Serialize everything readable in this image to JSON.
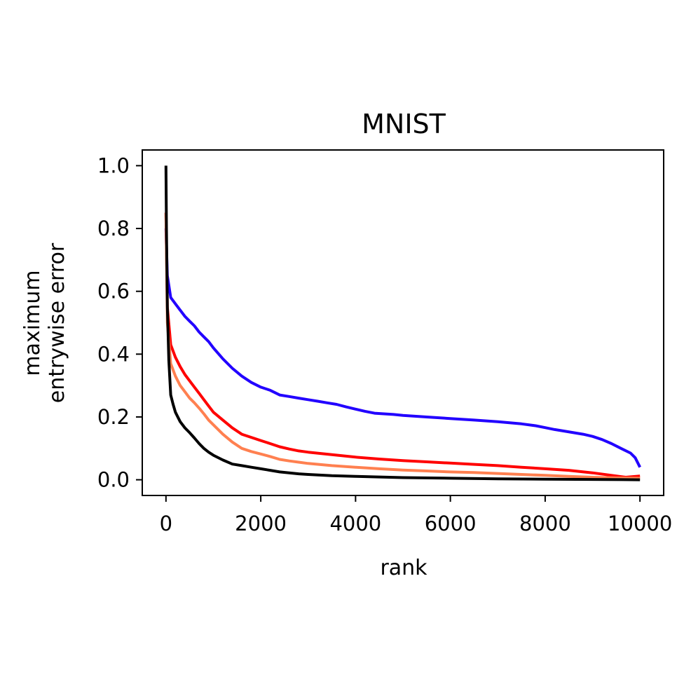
{
  "chart_data": {
    "type": "line",
    "title": "MNIST",
    "xlabel": "rank",
    "ylabel": [
      "maximum",
      "entrywise error"
    ],
    "xlim": [
      -500,
      10500
    ],
    "ylim": [
      -0.05,
      1.05
    ],
    "xticks": [
      0,
      2000,
      4000,
      6000,
      8000,
      10000
    ],
    "yticks": [
      0.0,
      0.2,
      0.4,
      0.6,
      0.8,
      1.0
    ],
    "yticklabels": [
      "0.0",
      "0.2",
      "0.4",
      "0.6",
      "0.8",
      "1.0"
    ],
    "grid": false,
    "legend": "none",
    "series": [
      {
        "name": "blue",
        "color": "#2200ff",
        "x": [
          0,
          30,
          100,
          200,
          300,
          400,
          500,
          600,
          700,
          800,
          900,
          1000,
          1200,
          1400,
          1600,
          1800,
          2000,
          2200,
          2400,
          2600,
          2800,
          3000,
          3200,
          3400,
          3600,
          3800,
          4000,
          4200,
          4400,
          4600,
          4800,
          5000,
          5500,
          6000,
          6500,
          7000,
          7500,
          7800,
          8000,
          8200,
          8400,
          8600,
          8800,
          9000,
          9200,
          9400,
          9600,
          9800,
          9900,
          10000
        ],
        "y": [
          0.8,
          0.65,
          0.58,
          0.56,
          0.54,
          0.52,
          0.505,
          0.49,
          0.47,
          0.455,
          0.44,
          0.42,
          0.385,
          0.355,
          0.33,
          0.31,
          0.295,
          0.285,
          0.27,
          0.265,
          0.26,
          0.255,
          0.25,
          0.245,
          0.24,
          0.232,
          0.225,
          0.218,
          0.212,
          0.21,
          0.208,
          0.205,
          0.2,
          0.195,
          0.19,
          0.185,
          0.178,
          0.172,
          0.166,
          0.16,
          0.155,
          0.15,
          0.145,
          0.138,
          0.128,
          0.115,
          0.1,
          0.085,
          0.07,
          0.04
        ]
      },
      {
        "name": "red",
        "color": "#ff0000",
        "x": [
          0,
          30,
          100,
          200,
          300,
          400,
          500,
          600,
          700,
          800,
          900,
          1000,
          1200,
          1400,
          1600,
          1800,
          2000,
          2200,
          2400,
          2600,
          2800,
          3000,
          3500,
          4000,
          4500,
          5000,
          5500,
          6000,
          6500,
          7000,
          7500,
          8000,
          8500,
          9000,
          9500,
          9700,
          10000
        ],
        "y": [
          0.85,
          0.55,
          0.43,
          0.39,
          0.36,
          0.335,
          0.315,
          0.295,
          0.275,
          0.255,
          0.235,
          0.215,
          0.19,
          0.165,
          0.145,
          0.135,
          0.125,
          0.115,
          0.105,
          0.098,
          0.092,
          0.088,
          0.08,
          0.072,
          0.066,
          0.061,
          0.057,
          0.053,
          0.049,
          0.045,
          0.04,
          0.035,
          0.03,
          0.022,
          0.012,
          0.008,
          0.012
        ]
      },
      {
        "name": "salmon",
        "color": "#ff8050",
        "x": [
          0,
          30,
          100,
          200,
          300,
          400,
          500,
          600,
          700,
          800,
          900,
          1000,
          1200,
          1400,
          1600,
          1800,
          2000,
          2200,
          2400,
          2600,
          2800,
          3000,
          3500,
          4000,
          4500,
          5000,
          5500,
          6000,
          6500,
          7000,
          7500,
          8000,
          8500,
          9000,
          9500,
          10000
        ],
        "y": [
          0.85,
          0.5,
          0.37,
          0.33,
          0.3,
          0.28,
          0.26,
          0.245,
          0.228,
          0.21,
          0.19,
          0.175,
          0.145,
          0.12,
          0.1,
          0.09,
          0.082,
          0.074,
          0.065,
          0.06,
          0.056,
          0.052,
          0.045,
          0.04,
          0.035,
          0.031,
          0.028,
          0.025,
          0.023,
          0.02,
          0.017,
          0.014,
          0.011,
          0.008,
          0.006,
          0.005
        ]
      },
      {
        "name": "black",
        "color": "#000000",
        "x": [
          0,
          10,
          30,
          60,
          100,
          150,
          200,
          300,
          400,
          500,
          600,
          700,
          800,
          900,
          1000,
          1200,
          1400,
          1600,
          1800,
          2000,
          2200,
          2400,
          2600,
          2800,
          3000,
          3500,
          4000,
          4500,
          5000,
          6000,
          7000,
          8000,
          9000,
          10000
        ],
        "y": [
          1.0,
          0.8,
          0.55,
          0.38,
          0.27,
          0.24,
          0.215,
          0.185,
          0.165,
          0.15,
          0.133,
          0.115,
          0.1,
          0.088,
          0.078,
          0.063,
          0.05,
          0.045,
          0.04,
          0.035,
          0.03,
          0.025,
          0.022,
          0.019,
          0.017,
          0.013,
          0.011,
          0.009,
          0.007,
          0.005,
          0.003,
          0.002,
          0.001,
          0.0
        ]
      }
    ]
  }
}
